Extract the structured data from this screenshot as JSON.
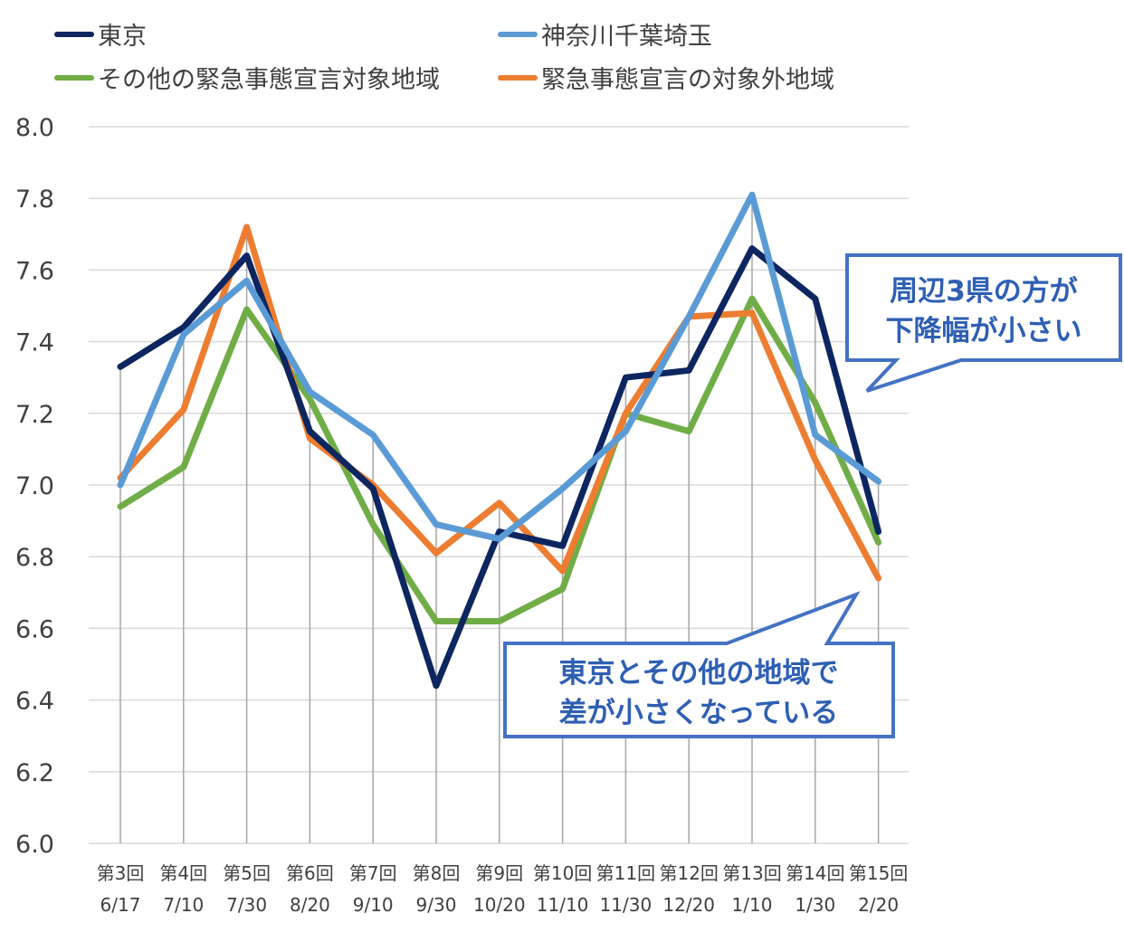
{
  "chart_data": {
    "type": "line",
    "categories": [
      "第3回",
      "第4回",
      "第5回",
      "第6回",
      "第7回",
      "第8回",
      "第9回",
      "第10回",
      "第11回",
      "第12回",
      "第13回",
      "第14回",
      "第15回"
    ],
    "dates": [
      "6/17",
      "7/10",
      "7/30",
      "8/20",
      "9/10",
      "9/30",
      "10/20",
      "11/10",
      "11/30",
      "12/20",
      "1/10",
      "1/30",
      "2/20"
    ],
    "ylim": [
      6.0,
      8.0
    ],
    "yticks": [
      "6.0",
      "6.2",
      "6.4",
      "6.6",
      "6.8",
      "7.0",
      "7.2",
      "7.4",
      "7.6",
      "7.8",
      "8.0"
    ],
    "grid": true,
    "legend_position": "top",
    "series": [
      {
        "name": "東京",
        "color": "#0d2660",
        "values": [
          7.33,
          7.44,
          7.64,
          7.15,
          6.99,
          6.44,
          6.87,
          6.83,
          7.3,
          7.32,
          7.66,
          7.52,
          6.87
        ]
      },
      {
        "name": "神奈川千葉埼玉",
        "color": "#5b9bd5",
        "values": [
          7.0,
          7.42,
          7.57,
          7.26,
          7.14,
          6.89,
          6.85,
          6.99,
          7.15,
          7.47,
          7.81,
          7.14,
          7.01
        ]
      },
      {
        "name": "その他の緊急事態宣言対象地域",
        "color": "#70ad47",
        "values": [
          6.94,
          7.05,
          7.49,
          7.24,
          6.89,
          6.62,
          6.62,
          6.71,
          7.2,
          7.15,
          7.52,
          7.23,
          6.84
        ]
      },
      {
        "name": "緊急事態宣言の対象外地域",
        "color": "#ed7d31",
        "values": [
          7.02,
          7.21,
          7.72,
          7.13,
          7.0,
          6.81,
          6.95,
          6.76,
          7.2,
          7.47,
          7.48,
          7.07,
          6.74
        ]
      }
    ],
    "annotations": [
      {
        "lines": [
          "周辺3県の方が",
          "下降幅が小さい"
        ]
      },
      {
        "lines": [
          "東京とその他の地域で",
          "差が小さくなっている"
        ]
      }
    ]
  }
}
